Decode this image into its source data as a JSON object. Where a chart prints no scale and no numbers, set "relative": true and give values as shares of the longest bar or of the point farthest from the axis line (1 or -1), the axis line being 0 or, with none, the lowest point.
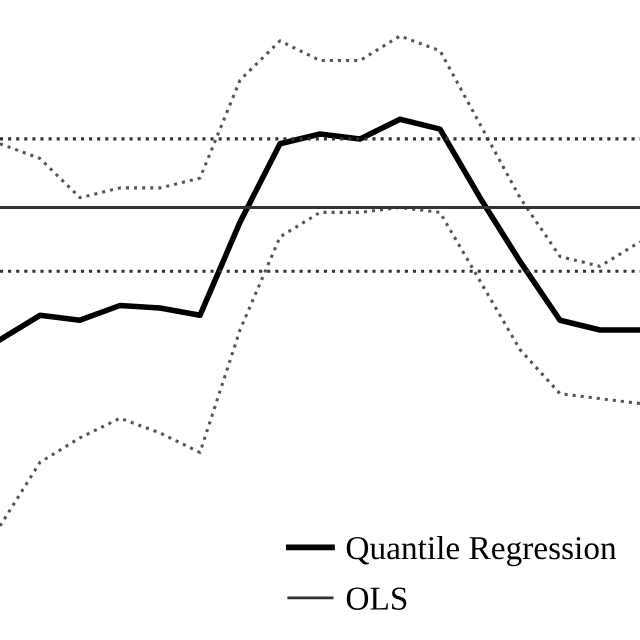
{
  "chart_data": {
    "type": "line",
    "relative": true,
    "legend": "bottom right",
    "categories": [
      null,
      null,
      null,
      null,
      null,
      null,
      null,
      null,
      null,
      null,
      null,
      null,
      null,
      null,
      null,
      null,
      null
    ],
    "series": [
      {
        "name": "Quantile Regression",
        "color": "#000000",
        "line_style": "solid",
        "values": [
          0.38,
          0.43,
          0.42,
          0.45,
          0.445,
          0.43,
          0.62,
          0.78,
          0.8,
          0.79,
          0.83,
          0.81,
          0.67,
          0.54,
          0.42,
          0.4,
          0.4
        ]
      },
      {
        "color": "#555555",
        "line_style": "dotted",
        "values": [
          0.78,
          0.75,
          0.67,
          0.69,
          0.69,
          0.71,
          0.91,
          0.99,
          0.95,
          0.95,
          1.0,
          0.97,
          0.82,
          0.67,
          0.55,
          0.53,
          0.58
        ]
      },
      {
        "color": "#555555",
        "line_style": "dotted",
        "values": [
          0,
          0.13,
          0.18,
          0.22,
          0.19,
          0.15,
          0.4,
          0.59,
          0.64,
          0.64,
          0.65,
          0.64,
          0.5,
          0.36,
          0.27,
          0.26,
          0.25
        ]
      },
      {
        "name": "OLS",
        "color": "#333333",
        "line_style": "solid",
        "values": [
          0.65,
          0.65,
          0.65,
          0.65,
          0.65,
          0.65,
          0.65,
          0.65,
          0.65,
          0.65,
          0.65,
          0.65,
          0.65,
          0.65,
          0.65,
          0.65,
          0.65
        ]
      },
      {
        "color": "#333333",
        "line_style": "dotted",
        "values": [
          0.79,
          0.79,
          0.79,
          0.79,
          0.79,
          0.79,
          0.79,
          0.79,
          0.79,
          0.79,
          0.79,
          0.79,
          0.79,
          0.79,
          0.79,
          0.79,
          0.79
        ]
      },
      {
        "color": "#333333",
        "line_style": "dotted",
        "values": [
          0.52,
          0.52,
          0.52,
          0.52,
          0.52,
          0.52,
          0.52,
          0.52,
          0.52,
          0.52,
          0.52,
          0.52,
          0.52,
          0.52,
          0.52,
          0.52,
          0.52
        ]
      }
    ]
  }
}
